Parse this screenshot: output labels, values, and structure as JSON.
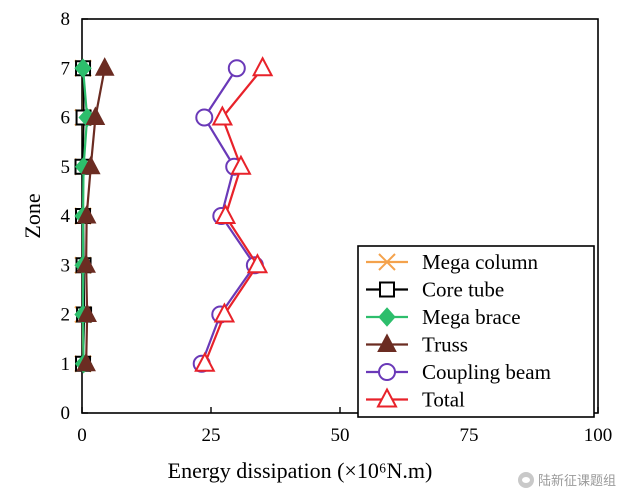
{
  "chart_data": {
    "type": "line",
    "xlabel": "Energy dissipation (×10⁶N.m)",
    "ylabel": "Zone",
    "xlim": [
      0,
      100
    ],
    "ylim": [
      0,
      8
    ],
    "x_ticks": [
      "0",
      "25",
      "50",
      "75",
      "100"
    ],
    "y_ticks": [
      "0",
      "1",
      "2",
      "3",
      "4",
      "5",
      "6",
      "7",
      "8"
    ],
    "grid": false,
    "legend_position": "bottom-right",
    "y": [
      1,
      2,
      3,
      4,
      5,
      6,
      7
    ],
    "series": [
      {
        "name": "Mega column",
        "color": "#F4A24C",
        "marker": "x",
        "values": [
          0.2,
          0.2,
          0.2,
          0.2,
          0.2,
          0.2,
          0.2
        ]
      },
      {
        "name": "Core tube",
        "color": "#000000",
        "marker": "square",
        "values": [
          0.2,
          0.4,
          0.3,
          0.2,
          0.1,
          0.3,
          0.2
        ]
      },
      {
        "name": "Mega brace",
        "color": "#2DBE6C",
        "marker": "diamond",
        "values": [
          0.3,
          0.2,
          0.2,
          0.2,
          0.3,
          1.0,
          0.2
        ]
      },
      {
        "name": "Truss",
        "color": "#6B2C22",
        "marker": "triangle",
        "values": [
          0.8,
          1.0,
          0.8,
          0.9,
          1.7,
          2.6,
          4.4
        ]
      },
      {
        "name": "Coupling beam",
        "color": "#6A39B8",
        "marker": "circle",
        "values": [
          23.2,
          26.8,
          33.5,
          27.0,
          29.5,
          23.7,
          30.0
        ]
      },
      {
        "name": "Total",
        "color": "#E8222A",
        "marker": "triangle-open",
        "values": [
          23.8,
          27.6,
          34.0,
          27.8,
          30.8,
          27.2,
          35.0
        ]
      }
    ]
  },
  "watermark": {
    "text": "陆新征课题组",
    "icon": "wechat-icon"
  }
}
